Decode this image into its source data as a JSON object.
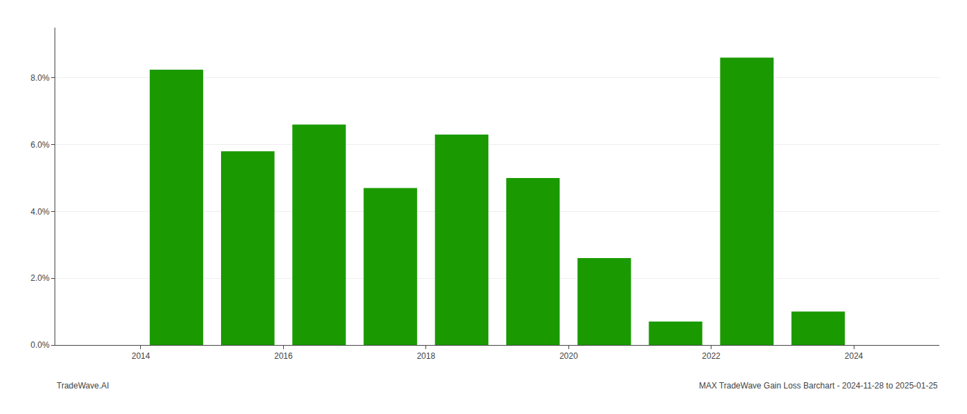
{
  "chart_data": {
    "type": "bar",
    "x": [
      2013.5,
      2014.5,
      2015.5,
      2016.5,
      2017.5,
      2018.5,
      2019.5,
      2020.5,
      2021.5,
      2022.5,
      2023.5
    ],
    "values": [
      0.0,
      0.0824,
      0.058,
      0.066,
      0.047,
      0.063,
      0.05,
      0.026,
      0.007,
      0.086,
      0.01
    ],
    "color": "#1a9a00",
    "xlim": [
      2012.8,
      2025.2
    ],
    "xticks": [
      2014,
      2016,
      2018,
      2020,
      2022,
      2024
    ],
    "ylim": [
      0.0,
      0.095
    ],
    "yticks": [
      {
        "value": 0.0,
        "label": "0.0%"
      },
      {
        "value": 0.02,
        "label": "2.0%"
      },
      {
        "value": 0.04,
        "label": "4.0%"
      },
      {
        "value": 0.06,
        "label": "6.0%"
      },
      {
        "value": 0.08,
        "label": "8.0%"
      }
    ],
    "grid": true,
    "annotations": [
      "TradeWave.AI",
      "MAX TradeWave Gain Loss Barchart - 2024-11-28 to 2025-01-25"
    ]
  }
}
